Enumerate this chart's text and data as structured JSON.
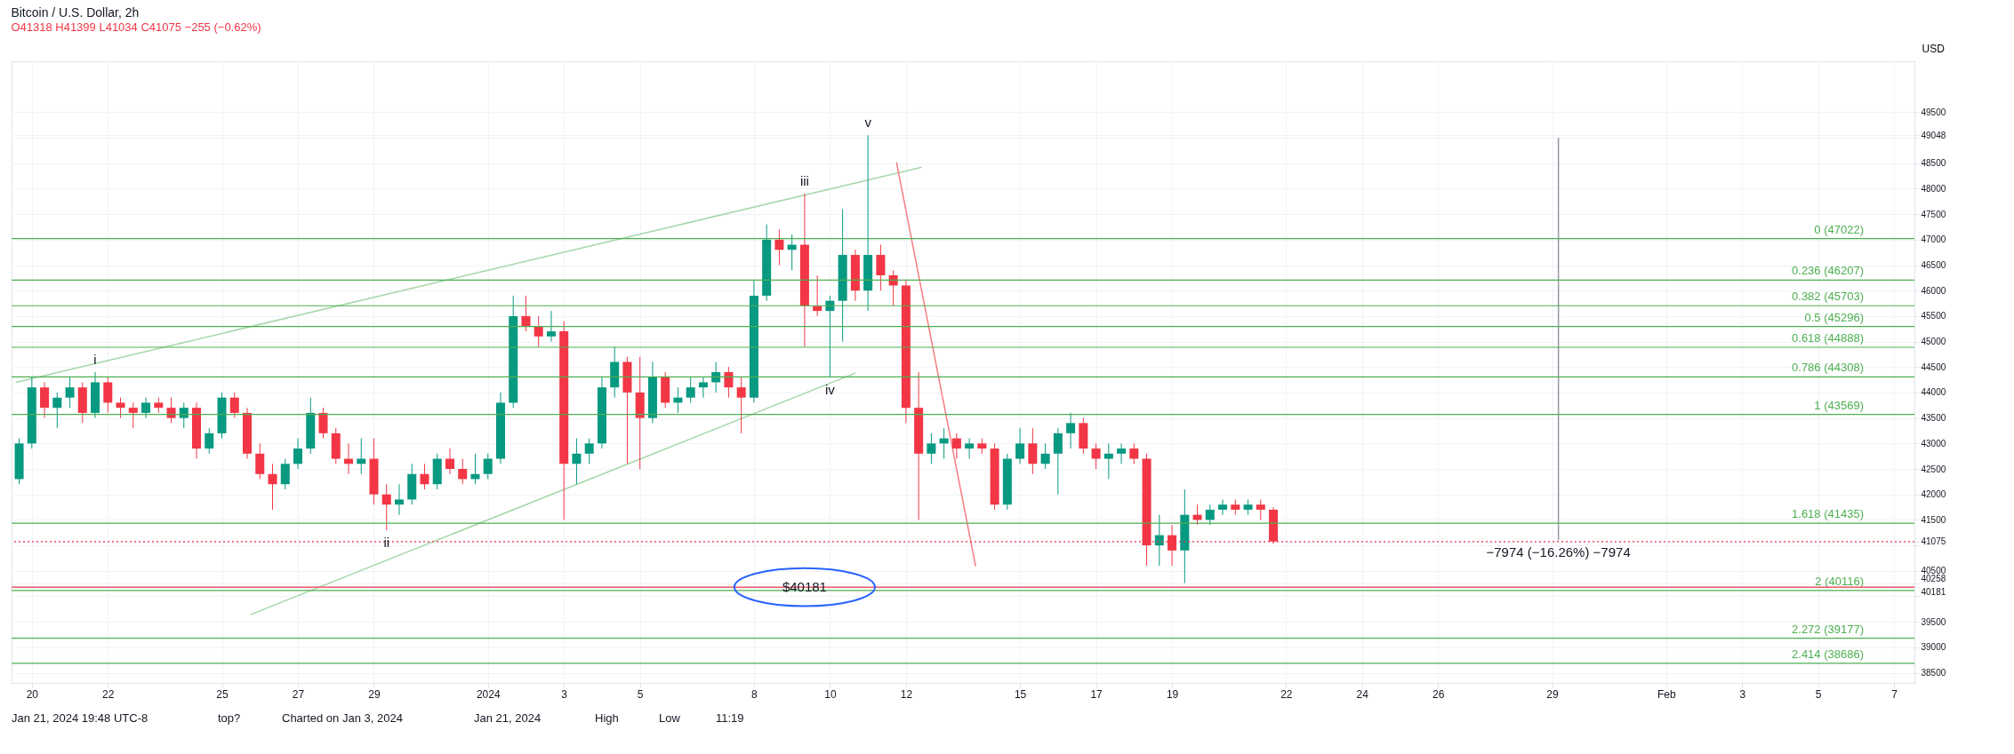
{
  "chart_data": {
    "type": "candlestick",
    "title": "Bitcoin / U.S. Dollar, 2h",
    "subtitle": "O41318 H41399 L41034 C41075 −255 (−0.62%)",
    "ylabel": "USD",
    "xlim": [
      "2023-12-19T14:00",
      "2024-02-07T10:00"
    ],
    "xticks": [
      {
        "value": "2023-12-20",
        "label": "20"
      },
      {
        "value": "2023-12-22",
        "label": "22"
      },
      {
        "value": "2023-12-25",
        "label": "25"
      },
      {
        "value": "2023-12-27",
        "label": "27"
      },
      {
        "value": "2023-12-29",
        "label": "29"
      },
      {
        "value": "2024-01-01",
        "label": "2024"
      },
      {
        "value": "2024-01-03",
        "label": "3"
      },
      {
        "value": "2024-01-05",
        "label": "5"
      },
      {
        "value": "2024-01-08",
        "label": "8"
      },
      {
        "value": "2024-01-10",
        "label": "10"
      },
      {
        "value": "2024-01-12",
        "label": "12"
      },
      {
        "value": "2024-01-15",
        "label": "15"
      },
      {
        "value": "2024-01-17",
        "label": "17"
      },
      {
        "value": "2024-01-19",
        "label": "19"
      },
      {
        "value": "2024-01-22",
        "label": "22"
      },
      {
        "value": "2024-01-24",
        "label": "24"
      },
      {
        "value": "2024-01-26",
        "label": "26"
      },
      {
        "value": "2024-01-29",
        "label": "29"
      },
      {
        "value": "2024-02-01",
        "label": "Feb"
      },
      {
        "value": "2024-02-03",
        "label": "3"
      },
      {
        "value": "2024-02-05",
        "label": "5"
      },
      {
        "value": "2024-02-07",
        "label": "7"
      }
    ],
    "ylim": [
      38300,
      50500
    ],
    "yticks": [
      38500,
      39000,
      39500,
      {
        "value": 40000,
        "label": null
      },
      40181,
      40258,
      40500,
      {
        "value": 41000,
        "label": null
      },
      41075,
      41500,
      42000,
      42500,
      43000,
      43500,
      44000,
      44500,
      45000,
      45500,
      46000,
      46500,
      47000,
      47500,
      48000,
      48500,
      {
        "value": 49000,
        "label": null
      },
      49048,
      49500
    ],
    "grid": true,
    "series": [
      {
        "type": "candlestick",
        "x": [
          "2023-12-19T16:00",
          "2023-12-20T00:00",
          "2023-12-20T08:00",
          "2023-12-20T16:00",
          "2023-12-21T00:00",
          "2023-12-21T08:00",
          "2023-12-21T16:00",
          "2023-12-22T00:00",
          "2023-12-22T08:00",
          "2023-12-22T16:00",
          "2023-12-23T00:00",
          "2023-12-23T08:00",
          "2023-12-23T16:00",
          "2023-12-24T00:00",
          "2023-12-24T08:00",
          "2023-12-24T16:00",
          "2023-12-25T00:00",
          "2023-12-25T08:00",
          "2023-12-25T16:00",
          "2023-12-26T00:00",
          "2023-12-26T08:00",
          "2023-12-26T16:00",
          "2023-12-27T00:00",
          "2023-12-27T08:00",
          "2023-12-27T16:00",
          "2023-12-28T00:00",
          "2023-12-28T08:00",
          "2023-12-28T16:00",
          "2023-12-29T00:00",
          "2023-12-29T08:00",
          "2023-12-29T16:00",
          "2023-12-30T00:00",
          "2023-12-30T08:00",
          "2023-12-30T16:00",
          "2023-12-31T00:00",
          "2023-12-31T08:00",
          "2023-12-31T16:00",
          "2024-01-01T00:00",
          "2024-01-01T08:00",
          "2024-01-01T16:00",
          "2024-01-02T00:00",
          "2024-01-02T08:00",
          "2024-01-02T16:00",
          "2024-01-03T00:00",
          "2024-01-03T08:00",
          "2024-01-03T16:00",
          "2024-01-04T00:00",
          "2024-01-04T08:00",
          "2024-01-04T16:00",
          "2024-01-05T00:00",
          "2024-01-05T08:00",
          "2024-01-05T16:00",
          "2024-01-06T00:00",
          "2024-01-06T08:00",
          "2024-01-06T16:00",
          "2024-01-07T00:00",
          "2024-01-07T08:00",
          "2024-01-07T16:00",
          "2024-01-08T00:00",
          "2024-01-08T08:00",
          "2024-01-08T16:00",
          "2024-01-09T00:00",
          "2024-01-09T08:00",
          "2024-01-09T16:00",
          "2024-01-10T00:00",
          "2024-01-10T08:00",
          "2024-01-10T16:00",
          "2024-01-11T00:00",
          "2024-01-11T08:00",
          "2024-01-11T16:00",
          "2024-01-12T00:00",
          "2024-01-12T08:00",
          "2024-01-12T16:00",
          "2024-01-13T00:00",
          "2024-01-13T08:00",
          "2024-01-13T16:00",
          "2024-01-14T00:00",
          "2024-01-14T08:00",
          "2024-01-14T16:00",
          "2024-01-15T00:00",
          "2024-01-15T08:00",
          "2024-01-15T16:00",
          "2024-01-16T00:00",
          "2024-01-16T08:00",
          "2024-01-16T16:00",
          "2024-01-17T00:00",
          "2024-01-17T08:00",
          "2024-01-17T16:00",
          "2024-01-18T00:00",
          "2024-01-18T08:00",
          "2024-01-18T16:00",
          "2024-01-19T00:00",
          "2024-01-19T08:00",
          "2024-01-19T16:00",
          "2024-01-20T00:00",
          "2024-01-20T08:00",
          "2024-01-20T16:00",
          "2024-01-21T00:00",
          "2024-01-21T08:00",
          "2024-01-21T16:00"
        ],
        "ohlc": [
          [
            42300,
            43100,
            42200,
            43000
          ],
          [
            43000,
            44300,
            42900,
            44100
          ],
          [
            44100,
            44200,
            43500,
            43700
          ],
          [
            43700,
            44000,
            43300,
            43900
          ],
          [
            43900,
            44300,
            43700,
            44100
          ],
          [
            44100,
            44200,
            43400,
            43600
          ],
          [
            43600,
            44400,
            43500,
            44200
          ],
          [
            44200,
            44300,
            43600,
            43800
          ],
          [
            43800,
            43900,
            43500,
            43700
          ],
          [
            43700,
            43800,
            43300,
            43600
          ],
          [
            43600,
            43900,
            43500,
            43800
          ],
          [
            43800,
            43900,
            43600,
            43700
          ],
          [
            43700,
            43900,
            43400,
            43500
          ],
          [
            43500,
            43800,
            43300,
            43700
          ],
          [
            43700,
            43800,
            42700,
            42900
          ],
          [
            42900,
            43300,
            42800,
            43200
          ],
          [
            43200,
            44000,
            43100,
            43900
          ],
          [
            43900,
            44000,
            43500,
            43600
          ],
          [
            43600,
            43700,
            42700,
            42800
          ],
          [
            42800,
            43000,
            42300,
            42400
          ],
          [
            42400,
            42600,
            41700,
            42200
          ],
          [
            42200,
            42700,
            42100,
            42600
          ],
          [
            42600,
            43100,
            42500,
            42900
          ],
          [
            42900,
            43900,
            42800,
            43600
          ],
          [
            43600,
            43700,
            43100,
            43200
          ],
          [
            43200,
            43300,
            42600,
            42700
          ],
          [
            42700,
            43000,
            42400,
            42600
          ],
          [
            42600,
            43100,
            42400,
            42700
          ],
          [
            42700,
            43100,
            41800,
            42000
          ],
          [
            42000,
            42200,
            41300,
            41800
          ],
          [
            41800,
            42200,
            41600,
            41900
          ],
          [
            41900,
            42600,
            41800,
            42400
          ],
          [
            42400,
            42600,
            42100,
            42200
          ],
          [
            42200,
            42800,
            42100,
            42700
          ],
          [
            42700,
            42900,
            42400,
            42500
          ],
          [
            42500,
            42700,
            42200,
            42300
          ],
          [
            42300,
            42800,
            42200,
            42400
          ],
          [
            42400,
            42800,
            42300,
            42700
          ],
          [
            42700,
            44000,
            42600,
            43800
          ],
          [
            43800,
            45900,
            43700,
            45500
          ],
          [
            45500,
            45900,
            45200,
            45300
          ],
          [
            45300,
            45500,
            44900,
            45100
          ],
          [
            45100,
            45600,
            45000,
            45200
          ],
          [
            45200,
            45400,
            41500,
            42600
          ],
          [
            42600,
            43100,
            42200,
            42800
          ],
          [
            42800,
            43100,
            42600,
            43000
          ],
          [
            43000,
            44300,
            42900,
            44100
          ],
          [
            44100,
            44900,
            43900,
            44600
          ],
          [
            44600,
            44700,
            42600,
            44000
          ],
          [
            44000,
            44700,
            42500,
            43500
          ],
          [
            43500,
            44600,
            43400,
            44300
          ],
          [
            44300,
            44400,
            43700,
            43800
          ],
          [
            43800,
            44100,
            43600,
            43900
          ],
          [
            43900,
            44300,
            43800,
            44100
          ],
          [
            44100,
            44300,
            43900,
            44200
          ],
          [
            44200,
            44600,
            44000,
            44400
          ],
          [
            44400,
            44500,
            43900,
            44100
          ],
          [
            44100,
            44300,
            43200,
            43900
          ],
          [
            43900,
            46200,
            43800,
            45900
          ],
          [
            45900,
            47300,
            45800,
            47000
          ],
          [
            47000,
            47200,
            46500,
            46800
          ],
          [
            46800,
            47100,
            46400,
            46900
          ],
          [
            46900,
            47900,
            44900,
            45700
          ],
          [
            45700,
            46300,
            45500,
            45600
          ],
          [
            45600,
            45900,
            44300,
            45800
          ],
          [
            45800,
            47600,
            45000,
            46700
          ],
          [
            46700,
            46800,
            45800,
            46000
          ],
          [
            46000,
            49048,
            45600,
            46700
          ],
          [
            46700,
            46900,
            46000,
            46300
          ],
          [
            46300,
            46400,
            45700,
            46100
          ],
          [
            46100,
            46200,
            43400,
            43700
          ],
          [
            43700,
            44400,
            41500,
            42800
          ],
          [
            42800,
            43200,
            42600,
            43000
          ],
          [
            43000,
            43300,
            42700,
            43100
          ],
          [
            43100,
            43200,
            42700,
            42900
          ],
          [
            42900,
            43100,
            42700,
            43000
          ],
          [
            43000,
            43100,
            42800,
            42900
          ],
          [
            42900,
            43000,
            41700,
            41800
          ],
          [
            41800,
            42800,
            41700,
            42700
          ],
          [
            42700,
            43300,
            42600,
            43000
          ],
          [
            43000,
            43300,
            42400,
            42600
          ],
          [
            42600,
            43000,
            42500,
            42800
          ],
          [
            42800,
            43300,
            42000,
            43200
          ],
          [
            43200,
            43600,
            42900,
            43400
          ],
          [
            43400,
            43500,
            42800,
            42900
          ],
          [
            42900,
            43000,
            42500,
            42700
          ],
          [
            42700,
            43000,
            42300,
            42800
          ],
          [
            42800,
            43000,
            42600,
            42900
          ],
          [
            42900,
            43000,
            42600,
            42700
          ],
          [
            42700,
            42800,
            40600,
            41000
          ],
          [
            41000,
            41600,
            40600,
            41200
          ],
          [
            41200,
            41400,
            40600,
            40900
          ],
          [
            40900,
            42100,
            40258,
            41600
          ],
          [
            41600,
            41800,
            41400,
            41500
          ],
          [
            41500,
            41800,
            41400,
            41700
          ],
          [
            41700,
            41900,
            41600,
            41800
          ],
          [
            41800,
            41900,
            41600,
            41700
          ],
          [
            41700,
            41900,
            41600,
            41800
          ],
          [
            41800,
            41900,
            41500,
            41700
          ],
          [
            41700,
            41750,
            41034,
            41075
          ]
        ],
        "colors": [
          "#089981",
          "#089981",
          "#f23645",
          "#089981",
          "#089981",
          "#f23645",
          "#089981",
          "#f23645",
          "#f23645",
          "#f23645",
          "#089981",
          "#f23645",
          "#f23645",
          "#089981",
          "#f23645",
          "#089981",
          "#089981",
          "#f23645",
          "#f23645",
          "#f23645",
          "#f23645",
          "#089981",
          "#089981",
          "#089981",
          "#f23645",
          "#f23645",
          "#f23645",
          "#089981",
          "#f23645",
          "#f23645",
          "#089981",
          "#089981",
          "#f23645",
          "#089981",
          "#f23645",
          "#f23645",
          "#089981",
          "#089981",
          "#089981",
          "#089981",
          "#f23645",
          "#f23645",
          "#089981",
          "#f23645",
          "#089981",
          "#089981",
          "#089981",
          "#089981",
          "#f23645",
          "#f23645",
          "#089981",
          "#f23645",
          "#089981",
          "#089981",
          "#089981",
          "#089981",
          "#f23645",
          "#f23645",
          "#089981",
          "#089981",
          "#f23645",
          "#089981",
          "#f23645",
          "#f23645",
          "#089981",
          "#089981",
          "#f23645",
          "#089981",
          "#f23645",
          "#f23645",
          "#f23645",
          "#f23645",
          "#089981",
          "#089981",
          "#f23645",
          "#089981",
          "#f23645",
          "#f23645",
          "#089981",
          "#089981",
          "#f23645",
          "#089981",
          "#089981",
          "#089981",
          "#f23645",
          "#f23645",
          "#089981",
          "#089981",
          "#f23645",
          "#f23645",
          "#089981",
          "#f23645",
          "#089981",
          "#f23645",
          "#089981",
          "#089981",
          "#f23645",
          "#089981",
          "#f23645",
          "#f23645"
        ]
      },
      {
        "type": "line",
        "color": "#a5d6a7",
        "x": [
          "2023-12-19T14:00",
          "2024-01-12T10:00"
        ],
        "values": [
          44200,
          48420
        ]
      },
      {
        "type": "line",
        "color": "#a5d6a7",
        "x": [
          "2023-12-25T18:00",
          "2024-01-10T16:00"
        ],
        "values": [
          39640,
          44380
        ]
      },
      {
        "type": "line",
        "color": "#f77c80",
        "x": [
          "2024-01-11T18:00",
          "2024-01-13T20:00"
        ],
        "values": [
          48520,
          40590
        ]
      },
      {
        "type": "line",
        "color": "#9598a1",
        "x": [
          "2024-01-29T04:00",
          "2024-01-29T04:00"
        ],
        "values": [
          49000,
          41100
        ]
      }
    ],
    "ref_lines": [
      {
        "axis": "y",
        "value": 47022,
        "label": "0 (47022)",
        "color": "#4caf50"
      },
      {
        "axis": "y",
        "value": 46207,
        "label": "0.236 (46207)",
        "color": "#4caf50"
      },
      {
        "axis": "y",
        "value": 45703,
        "label": "0.382 (45703)",
        "color": "#4caf50"
      },
      {
        "axis": "y",
        "value": 45296,
        "label": "0.5 (45296)",
        "color": "#4caf50"
      },
      {
        "axis": "y",
        "value": 44888,
        "label": "0.618 (44888)",
        "color": "#4caf50"
      },
      {
        "axis": "y",
        "value": 44308,
        "label": "0.786 (44308)",
        "color": "#4caf50"
      },
      {
        "axis": "y",
        "value": 43569,
        "label": "1 (43569)",
        "color": "#4caf50"
      },
      {
        "axis": "y",
        "value": 41435,
        "label": "1.618 (41435)",
        "color": "#4caf50"
      },
      {
        "axis": "y",
        "value": 40116,
        "label": "2 (40116)",
        "color": "#4caf50"
      },
      {
        "axis": "y",
        "value": 39177,
        "label": "2.272 (39177)",
        "color": "#4caf50"
      },
      {
        "axis": "y",
        "value": 38686,
        "label": "2.414 (38686)",
        "color": "#4caf50"
      },
      {
        "axis": "y",
        "value": 40181,
        "color": "#f23645"
      },
      {
        "axis": "y",
        "value": 41075,
        "color": "#f23645",
        "line_style": "dotted"
      }
    ],
    "annotations": [
      "Jan 21, 2024 19:48 UTC-8",
      {
        "text": "i",
        "x": "2023-12-21T16:00",
        "y": 44400
      },
      {
        "text": "ii",
        "x": "2023-12-29T08:00",
        "y": 41300
      },
      {
        "text": "iii",
        "x": "2024-01-09T08:00",
        "y": 47900
      },
      {
        "text": "iv",
        "x": "2024-01-10T00:00",
        "y": 44300
      },
      {
        "text": "v",
        "x": "2024-01-11T00:00",
        "y": 49048
      },
      "top?",
      "Charted on Jan 3, 2024",
      {
        "text": "$40181",
        "x": "2024-01-09T08:00",
        "y": 40181
      },
      {
        "text": "−7974 (−16.26%) −7974",
        "x": "2024-01-29T04:00",
        "y": 41100
      },
      "Jan 21, 2024",
      "High",
      "Low",
      "11:19"
    ]
  }
}
